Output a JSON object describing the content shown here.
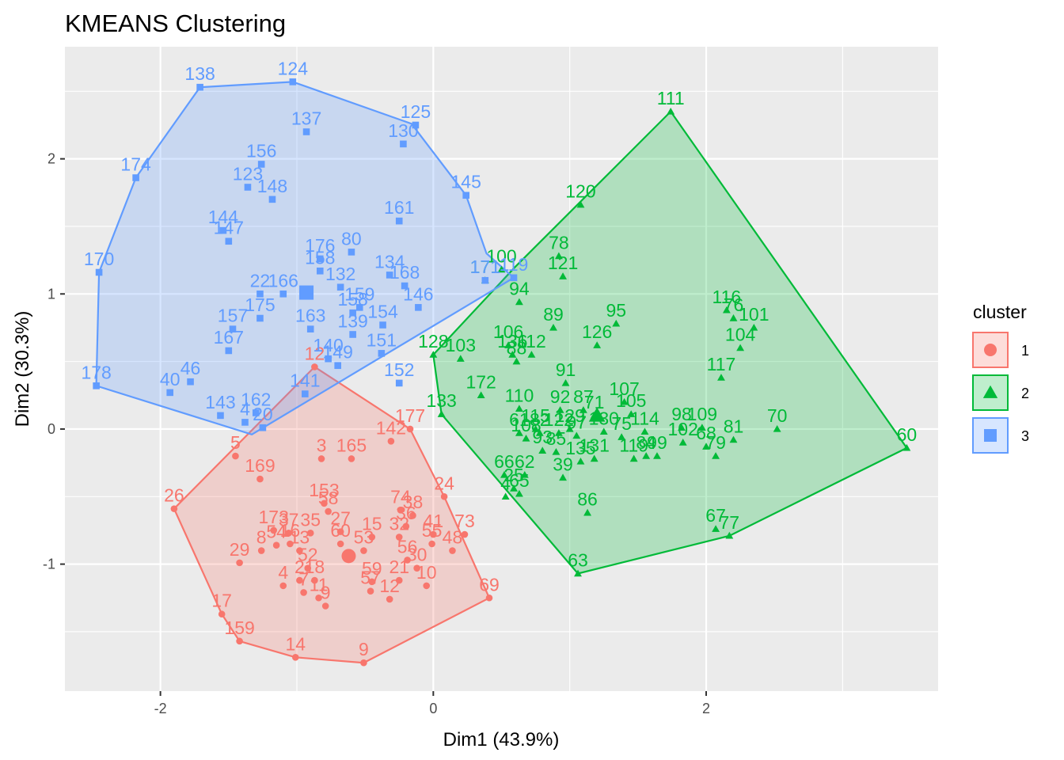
{
  "chart_data": {
    "type": "scatter",
    "title": "KMEANS Clustering",
    "xlabel": "Dim1 (43.9%)",
    "ylabel": "Dim2 (30.3%)",
    "xlim": [
      -2.7,
      3.7
    ],
    "ylim": [
      -1.94,
      2.83
    ],
    "x_ticks": [
      -2,
      0,
      2
    ],
    "y_ticks": [
      -1,
      0,
      1,
      2
    ],
    "grid": true,
    "legend": {
      "title": "cluster",
      "position": "right",
      "items": [
        "1",
        "2",
        "3"
      ]
    },
    "colors": {
      "1": "#F8766D",
      "2": "#00BA38",
      "3": "#619CFF",
      "panel": "#EBEBEB",
      "grid": "#FFFFFF"
    },
    "shapes": {
      "1": "circle",
      "2": "triangle",
      "3": "square"
    },
    "series": [
      {
        "name": "1",
        "centroid": [
          -0.62,
          -0.94
        ],
        "hull": [
          [
            -0.87,
            0.46
          ],
          [
            -0.17,
            0.0
          ],
          [
            0.08,
            -0.5
          ],
          [
            0.41,
            -1.25
          ],
          [
            -0.51,
            -1.73
          ],
          [
            -1.01,
            -1.69
          ],
          [
            -1.42,
            -1.57
          ],
          [
            -1.55,
            -1.37
          ],
          [
            -1.9,
            -0.59
          ]
        ],
        "points": [
          {
            "id": "12",
            "x": -0.87,
            "y": 0.46
          },
          {
            "id": "177",
            "x": -0.17,
            "y": 0.0
          },
          {
            "id": "142",
            "x": -0.31,
            "y": -0.09
          },
          {
            "id": "5",
            "x": -1.45,
            "y": -0.2
          },
          {
            "id": "3",
            "x": -0.82,
            "y": -0.22
          },
          {
            "id": "165",
            "x": -0.6,
            "y": -0.22
          },
          {
            "id": "169",
            "x": -1.27,
            "y": -0.37
          },
          {
            "id": "26",
            "x": -1.9,
            "y": -0.59
          },
          {
            "id": "24",
            "x": 0.08,
            "y": -0.5
          },
          {
            "id": "153",
            "x": -0.8,
            "y": -0.55
          },
          {
            "id": "58",
            "x": -0.77,
            "y": -0.61
          },
          {
            "id": "74",
            "x": -0.24,
            "y": -0.6
          },
          {
            "id": "38",
            "x": -0.15,
            "y": -0.64
          },
          {
            "id": "36",
            "x": -0.2,
            "y": -0.72
          },
          {
            "id": "173",
            "x": -1.17,
            "y": -0.75
          },
          {
            "id": "37",
            "x": -1.06,
            "y": -0.77
          },
          {
            "id": "35",
            "x": -0.9,
            "y": -0.77
          },
          {
            "id": "27",
            "x": -0.68,
            "y": -0.76
          },
          {
            "id": "73",
            "x": 0.23,
            "y": -0.78
          },
          {
            "id": "41",
            "x": 0.0,
            "y": -0.78
          },
          {
            "id": "15",
            "x": -0.45,
            "y": -0.8
          },
          {
            "id": "32",
            "x": -0.25,
            "y": -0.8
          },
          {
            "id": "54",
            "x": -1.15,
            "y": -0.86
          },
          {
            "id": "16",
            "x": -1.05,
            "y": -0.85
          },
          {
            "id": "60",
            "x": -0.68,
            "y": -0.85
          },
          {
            "id": "55",
            "x": -0.01,
            "y": -0.85
          },
          {
            "id": "8",
            "x": -1.26,
            "y": -0.9
          },
          {
            "id": "13",
            "x": -0.98,
            "y": -0.9
          },
          {
            "id": "53",
            "x": -0.51,
            "y": -0.9
          },
          {
            "id": "48",
            "x": 0.14,
            "y": -0.9
          },
          {
            "id": "29",
            "x": -1.42,
            "y": -0.99
          },
          {
            "id": "52",
            "x": -0.92,
            "y": -1.03
          },
          {
            "id": "56",
            "x": -0.19,
            "y": -0.97
          },
          {
            "id": "30",
            "x": -0.12,
            "y": -1.03
          },
          {
            "id": "69",
            "x": 0.41,
            "y": -1.25
          },
          {
            "id": "4",
            "x": -1.1,
            "y": -1.16
          },
          {
            "id": "2",
            "x": -0.98,
            "y": -1.12
          },
          {
            "id": "18",
            "x": -0.87,
            "y": -1.12
          },
          {
            "id": "59",
            "x": -0.45,
            "y": -1.13
          },
          {
            "id": "21",
            "x": -0.25,
            "y": -1.12
          },
          {
            "id": "10",
            "x": -0.05,
            "y": -1.16
          },
          {
            "id": "7",
            "x": -0.95,
            "y": -1.21
          },
          {
            "id": "57",
            "x": -0.46,
            "y": -1.2
          },
          {
            "id": "11",
            "x": -0.84,
            "y": -1.25
          },
          {
            "id": "12",
            "x": -0.32,
            "y": -1.26
          },
          {
            "id": "9",
            "x": -0.79,
            "y": -1.31
          },
          {
            "id": "17",
            "x": -1.55,
            "y": -1.37
          },
          {
            "id": "159",
            "x": -1.42,
            "y": -1.57
          },
          {
            "id": "14",
            "x": -1.01,
            "y": -1.69
          },
          {
            "id": "9",
            "x": -0.51,
            "y": -1.73
          }
        ]
      },
      {
        "name": "2",
        "centroid": [
          1.2,
          0.1
        ],
        "hull": [
          [
            1.74,
            2.35
          ],
          [
            3.47,
            -0.14
          ],
          [
            2.17,
            -0.79
          ],
          [
            1.06,
            -1.07
          ],
          [
            0.06,
            0.11
          ],
          [
            0.0,
            0.55
          ],
          [
            0.6,
            1.2
          ]
        ],
        "points": [
          {
            "id": "111",
            "x": 1.74,
            "y": 2.35
          },
          {
            "id": "120",
            "x": 1.08,
            "y": 1.66
          },
          {
            "id": "78",
            "x": 0.92,
            "y": 1.28
          },
          {
            "id": "121",
            "x": 0.95,
            "y": 1.13
          },
          {
            "id": "100",
            "x": 0.5,
            "y": 1.18
          },
          {
            "id": "171",
            "x": 0.38,
            "y": 1.1
          },
          {
            "id": "94",
            "x": 0.63,
            "y": 0.94
          },
          {
            "id": "89",
            "x": 0.88,
            "y": 0.75
          },
          {
            "id": "95",
            "x": 1.34,
            "y": 0.78
          },
          {
            "id": "116",
            "x": 2.15,
            "y": 0.88
          },
          {
            "id": "76",
            "x": 2.2,
            "y": 0.82
          },
          {
            "id": "101",
            "x": 2.35,
            "y": 0.75
          },
          {
            "id": "104",
            "x": 2.25,
            "y": 0.6
          },
          {
            "id": "106",
            "x": 0.55,
            "y": 0.62
          },
          {
            "id": "126",
            "x": 1.2,
            "y": 0.62
          },
          {
            "id": "112",
            "x": 0.72,
            "y": 0.55
          },
          {
            "id": "136",
            "x": 0.58,
            "y": 0.55
          },
          {
            "id": "128",
            "x": 0.0,
            "y": 0.55
          },
          {
            "id": "103",
            "x": 0.2,
            "y": 0.52
          },
          {
            "id": "88",
            "x": 0.61,
            "y": 0.5
          },
          {
            "id": "117",
            "x": 2.11,
            "y": 0.38
          },
          {
            "id": "91",
            "x": 0.97,
            "y": 0.34
          },
          {
            "id": "172",
            "x": 0.35,
            "y": 0.25
          },
          {
            "id": "133",
            "x": 0.06,
            "y": 0.11
          },
          {
            "id": "110",
            "x": 0.63,
            "y": 0.15
          },
          {
            "id": "107",
            "x": 1.4,
            "y": 0.2
          },
          {
            "id": "92",
            "x": 0.93,
            "y": 0.14
          },
          {
            "id": "87",
            "x": 1.1,
            "y": 0.14
          },
          {
            "id": "105",
            "x": 1.45,
            "y": 0.11
          },
          {
            "id": "71",
            "x": 1.18,
            "y": 0.1
          },
          {
            "id": "98",
            "x": 1.82,
            "y": 0.01
          },
          {
            "id": "109",
            "x": 1.97,
            "y": 0.01
          },
          {
            "id": "70",
            "x": 2.52,
            "y": 0.0
          },
          {
            "id": "60",
            "x": 3.47,
            "y": -0.14
          },
          {
            "id": "115",
            "x": 0.75,
            "y": 0.0
          },
          {
            "id": "129",
            "x": 1.0,
            "y": 0.0
          },
          {
            "id": "130",
            "x": 1.25,
            "y": -0.02
          },
          {
            "id": "114",
            "x": 1.55,
            "y": -0.02
          },
          {
            "id": "61",
            "x": 0.63,
            "y": -0.03
          },
          {
            "id": "82",
            "x": 0.78,
            "y": -0.03
          },
          {
            "id": "122",
            "x": 0.92,
            "y": -0.03
          },
          {
            "id": "75",
            "x": 1.38,
            "y": -0.06
          },
          {
            "id": "97",
            "x": 1.05,
            "y": -0.05
          },
          {
            "id": "108",
            "x": 0.68,
            "y": -0.07
          },
          {
            "id": "81",
            "x": 2.2,
            "y": -0.08
          },
          {
            "id": "102",
            "x": 1.83,
            "y": -0.1
          },
          {
            "id": "68",
            "x": 2.0,
            "y": -0.13
          },
          {
            "id": "79",
            "x": 2.07,
            "y": -0.2
          },
          {
            "id": "93",
            "x": 0.8,
            "y": -0.16
          },
          {
            "id": "85",
            "x": 0.9,
            "y": -0.17
          },
          {
            "id": "99",
            "x": 1.64,
            "y": -0.2
          },
          {
            "id": "84",
            "x": 1.56,
            "y": -0.2
          },
          {
            "id": "119",
            "x": 1.47,
            "y": -0.22
          },
          {
            "id": "135",
            "x": 1.08,
            "y": -0.24
          },
          {
            "id": "131",
            "x": 1.18,
            "y": -0.22
          },
          {
            "id": "66",
            "x": 0.52,
            "y": -0.34
          },
          {
            "id": "62",
            "x": 0.67,
            "y": -0.34
          },
          {
            "id": "39",
            "x": 0.95,
            "y": -0.36
          },
          {
            "id": "25",
            "x": 0.59,
            "y": -0.44
          },
          {
            "id": "65",
            "x": 0.63,
            "y": -0.48
          },
          {
            "id": "4",
            "x": 0.53,
            "y": -0.5
          },
          {
            "id": "86",
            "x": 1.13,
            "y": -0.62
          },
          {
            "id": "67",
            "x": 2.07,
            "y": -0.74
          },
          {
            "id": "77",
            "x": 2.17,
            "y": -0.79
          },
          {
            "id": "63",
            "x": 1.06,
            "y": -1.07
          }
        ]
      },
      {
        "name": "3",
        "centroid": [
          -0.93,
          1.01
        ],
        "hull": [
          [
            -1.03,
            2.57
          ],
          [
            -0.16,
            2.26
          ],
          [
            0.24,
            1.73
          ],
          [
            0.39,
            1.3
          ],
          [
            0.59,
            1.12
          ],
          [
            -1.33,
            -0.04
          ],
          [
            -2.47,
            0.32
          ],
          [
            -2.45,
            1.16
          ],
          [
            -2.18,
            1.86
          ],
          [
            -1.71,
            2.53
          ]
        ],
        "points": [
          {
            "id": "138",
            "x": -1.71,
            "y": 2.53
          },
          {
            "id": "124",
            "x": -1.03,
            "y": 2.57
          },
          {
            "id": "137",
            "x": -0.93,
            "y": 2.2
          },
          {
            "id": "125",
            "x": -0.13,
            "y": 2.25
          },
          {
            "id": "130",
            "x": -0.22,
            "y": 2.11
          },
          {
            "id": "174",
            "x": -2.18,
            "y": 1.86
          },
          {
            "id": "156",
            "x": -1.26,
            "y": 1.96
          },
          {
            "id": "123",
            "x": -1.36,
            "y": 1.79
          },
          {
            "id": "148",
            "x": -1.18,
            "y": 1.7
          },
          {
            "id": "145",
            "x": 0.24,
            "y": 1.73
          },
          {
            "id": "161",
            "x": -0.25,
            "y": 1.54
          },
          {
            "id": "144",
            "x": -1.54,
            "y": 1.47
          },
          {
            "id": "147",
            "x": -1.5,
            "y": 1.39
          },
          {
            "id": "170",
            "x": -2.45,
            "y": 1.16
          },
          {
            "id": "176",
            "x": -0.83,
            "y": 1.26
          },
          {
            "id": "80",
            "x": -0.6,
            "y": 1.31
          },
          {
            "id": "158",
            "x": -0.83,
            "y": 1.17
          },
          {
            "id": "134",
            "x": -0.32,
            "y": 1.14
          },
          {
            "id": "22",
            "x": -1.27,
            "y": 1.0
          },
          {
            "id": "166",
            "x": -1.1,
            "y": 1.0
          },
          {
            "id": "132",
            "x": -0.68,
            "y": 1.05
          },
          {
            "id": "168",
            "x": -0.21,
            "y": 1.06
          },
          {
            "id": "146",
            "x": -0.11,
            "y": 0.9
          },
          {
            "id": "175",
            "x": -1.27,
            "y": 0.82
          },
          {
            "id": "157",
            "x": -1.47,
            "y": 0.74
          },
          {
            "id": "163",
            "x": -0.9,
            "y": 0.74
          },
          {
            "id": "158",
            "x": -0.59,
            "y": 0.86
          },
          {
            "id": "159",
            "x": -0.54,
            "y": 0.9
          },
          {
            "id": "139",
            "x": -0.59,
            "y": 0.7
          },
          {
            "id": "154",
            "x": -0.37,
            "y": 0.77
          },
          {
            "id": "167",
            "x": -1.5,
            "y": 0.58
          },
          {
            "id": "151",
            "x": -0.38,
            "y": 0.56
          },
          {
            "id": "152",
            "x": -0.25,
            "y": 0.34
          },
          {
            "id": "149",
            "x": -0.7,
            "y": 0.47
          },
          {
            "id": "140",
            "x": -0.77,
            "y": 0.52
          },
          {
            "id": "178",
            "x": -2.47,
            "y": 0.32
          },
          {
            "id": "40",
            "x": -1.93,
            "y": 0.27
          },
          {
            "id": "46",
            "x": -1.78,
            "y": 0.35
          },
          {
            "id": "141",
            "x": -0.94,
            "y": 0.26
          },
          {
            "id": "143",
            "x": -1.56,
            "y": 0.1
          },
          {
            "id": "162",
            "x": -1.3,
            "y": 0.12
          },
          {
            "id": "4",
            "x": -1.38,
            "y": 0.05
          },
          {
            "id": "20",
            "x": -1.25,
            "y": 0.01
          },
          {
            "id": "171",
            "x": 0.38,
            "y": 1.1
          },
          {
            "id": "119",
            "x": 0.59,
            "y": 1.12
          }
        ]
      }
    ]
  }
}
